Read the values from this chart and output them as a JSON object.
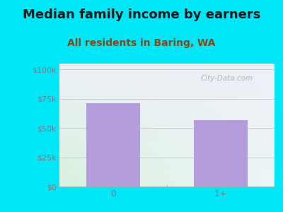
{
  "title": "Median family income by earners",
  "subtitle": "All residents in Baring, WA",
  "categories": [
    "0",
    "1+"
  ],
  "values": [
    71000,
    57000
  ],
  "bar_color": "#b39ddb",
  "background_outer": "#00e8f8",
  "plot_bg_color_topleft": "#e8f5e9",
  "plot_bg_color_topright": "#e8eef5",
  "plot_bg_color_bottom": "#f0faf0",
  "title_fontsize": 13,
  "subtitle_fontsize": 10,
  "title_color": "#1a1a1a",
  "subtitle_color": "#8b4513",
  "tick_label_color": "#7a7a8a",
  "yticks": [
    0,
    25000,
    50000,
    75000,
    100000
  ],
  "ytick_labels": [
    "$0",
    "$25k",
    "$50k",
    "$75k",
    "$100k"
  ],
  "ylim": [
    0,
    105000
  ],
  "watermark": "City-Data.com",
  "hline_color": "#cccccc",
  "bar_width": 0.5
}
